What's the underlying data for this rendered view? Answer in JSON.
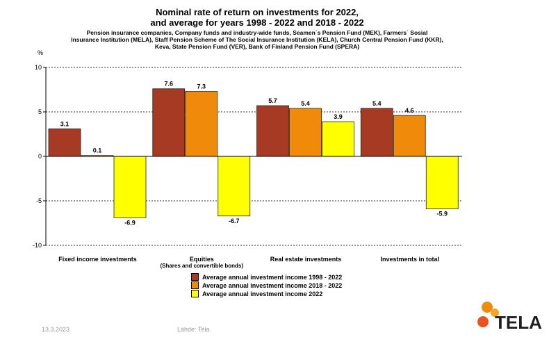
{
  "chart_data": {
    "type": "bar",
    "title_lines": [
      "Nominal rate of return on investments for 2022,",
      "and average for years 1998 - 2022 and 2018 - 2022"
    ],
    "subtitle_lines": [
      "Pension insurance companies, Company funds and industry-wide funds, Seamen´s Pension Fund (MEK), Farmers´ Sosial",
      "Insurance Institution (MELA),  Staff Pension Scheme of The Social Insurance Institution (KELA), Church Central Pension Fund (KKR),",
      "Keva, State Pension Fund (VER), Bank of Finland Pension Fund (SPERA)"
    ],
    "ylabel": "%",
    "ylim": [
      -10,
      10
    ],
    "yticks": [
      -10,
      -5,
      0,
      5,
      10
    ],
    "grid": true,
    "categories": [
      "Fixed income investments",
      "Equities",
      "Real estate investments",
      "Investments  in total"
    ],
    "category_sublabels": [
      "",
      "(Shares and convertible bonds)",
      "",
      ""
    ],
    "series": [
      {
        "name": "Average annual investment income 1998 - 2022",
        "color": "#a63a22",
        "values": [
          3.1,
          7.6,
          5.7,
          5.4
        ]
      },
      {
        "name": "Average annual investment income 2018 - 2022",
        "color": "#f08a0a",
        "values": [
          0.1,
          7.3,
          5.4,
          4.6
        ]
      },
      {
        "name": "Average annual investment income 2022",
        "color": "#ffff00",
        "values": [
          -6.9,
          -6.7,
          3.9,
          -5.9
        ]
      }
    ],
    "legend_position": "bottom-center"
  },
  "footer": {
    "date": "13.3.2023",
    "source": "Lähde: Tela"
  },
  "logo": {
    "text": "TELA",
    "colors": [
      "#f08a0a",
      "#f5a623",
      "#e8531e"
    ]
  }
}
